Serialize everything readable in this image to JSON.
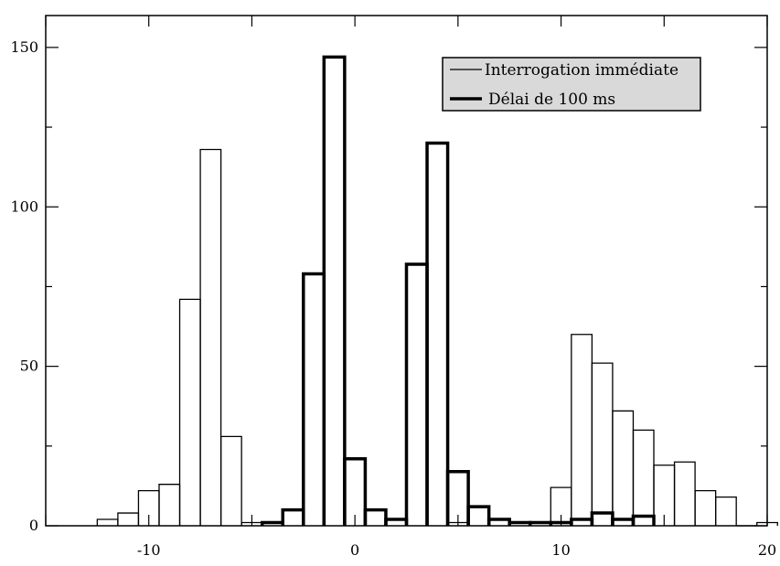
{
  "chart_data": {
    "type": "bar",
    "title": "",
    "xlabel": "",
    "ylabel": "",
    "xlim": [
      -15,
      20
    ],
    "ylim": [
      0,
      160
    ],
    "x_ticks": [
      -10,
      0,
      10,
      20
    ],
    "y_ticks": [
      0,
      50,
      100,
      150
    ],
    "x_tick_labels": [
      "-10",
      "0",
      "10",
      "20"
    ],
    "y_tick_labels": [
      "0",
      "50",
      "100",
      "150"
    ],
    "bin_width": 1,
    "grid": false,
    "legend_position": "top-right",
    "series": [
      {
        "name": "Interrogation immédiate",
        "line_style": "thin",
        "color": "#000000",
        "bins": [
          {
            "x": -12,
            "value": 2
          },
          {
            "x": -11,
            "value": 4
          },
          {
            "x": -10,
            "value": 11
          },
          {
            "x": -9,
            "value": 13
          },
          {
            "x": -8,
            "value": 71
          },
          {
            "x": -7,
            "value": 118
          },
          {
            "x": -6,
            "value": 28
          },
          {
            "x": -5,
            "value": 1
          },
          {
            "x": 5,
            "value": 1
          },
          {
            "x": 9,
            "value": 1
          },
          {
            "x": 10,
            "value": 12
          },
          {
            "x": 11,
            "value": 60
          },
          {
            "x": 12,
            "value": 51
          },
          {
            "x": 13,
            "value": 36
          },
          {
            "x": 14,
            "value": 30
          },
          {
            "x": 15,
            "value": 19
          },
          {
            "x": 16,
            "value": 20
          },
          {
            "x": 17,
            "value": 11
          },
          {
            "x": 18,
            "value": 9
          },
          {
            "x": 19,
            "value": 0
          },
          {
            "x": 20,
            "value": 1
          }
        ]
      },
      {
        "name": "Délai de 100 ms",
        "line_style": "thick",
        "color": "#000000",
        "bins": [
          {
            "x": -4,
            "value": 1
          },
          {
            "x": -3,
            "value": 5
          },
          {
            "x": -2,
            "value": 79
          },
          {
            "x": -1,
            "value": 147
          },
          {
            "x": 0,
            "value": 21
          },
          {
            "x": 1,
            "value": 5
          },
          {
            "x": 2,
            "value": 2
          },
          {
            "x": 3,
            "value": 82
          },
          {
            "x": 4,
            "value": 120
          },
          {
            "x": 5,
            "value": 17
          },
          {
            "x": 6,
            "value": 6
          },
          {
            "x": 7,
            "value": 2
          },
          {
            "x": 8,
            "value": 1
          },
          {
            "x": 9,
            "value": 1
          },
          {
            "x": 10,
            "value": 1
          },
          {
            "x": 11,
            "value": 2
          },
          {
            "x": 12,
            "value": 4
          },
          {
            "x": 13,
            "value": 2
          },
          {
            "x": 14,
            "value": 3
          }
        ]
      }
    ]
  }
}
